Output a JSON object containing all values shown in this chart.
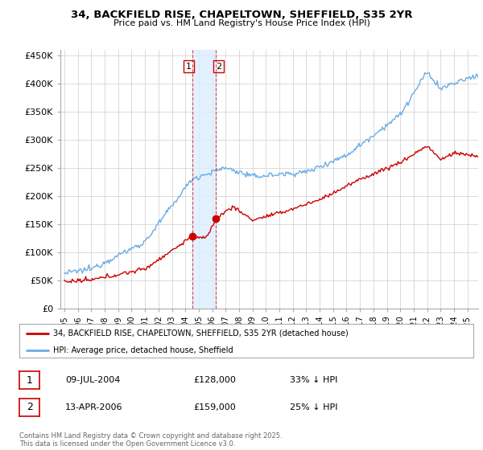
{
  "title": "34, BACKFIELD RISE, CHAPELTOWN, SHEFFIELD, S35 2YR",
  "subtitle": "Price paid vs. HM Land Registry's House Price Index (HPI)",
  "ylabel_ticks": [
    "£0",
    "£50K",
    "£100K",
    "£150K",
    "£200K",
    "£250K",
    "£300K",
    "£350K",
    "£400K",
    "£450K"
  ],
  "ytick_values": [
    0,
    50000,
    100000,
    150000,
    200000,
    250000,
    300000,
    350000,
    400000,
    450000
  ],
  "ylim": [
    0,
    460000
  ],
  "xlim_start": 1994.7,
  "xlim_end": 2025.8,
  "hpi_color": "#6aace6",
  "price_color": "#cc0000",
  "shade_color": "#ddeeff",
  "marker1_date": 2004.52,
  "marker2_date": 2006.28,
  "marker1_price": 128000,
  "marker2_price": 159000,
  "legend_label_price": "34, BACKFIELD RISE, CHAPELTOWN, SHEFFIELD, S35 2YR (detached house)",
  "legend_label_hpi": "HPI: Average price, detached house, Sheffield",
  "annotation1": [
    "1",
    "09-JUL-2004",
    "£128,000",
    "33% ↓ HPI"
  ],
  "annotation2": [
    "2",
    "13-APR-2006",
    "£159,000",
    "25% ↓ HPI"
  ],
  "footer": "Contains HM Land Registry data © Crown copyright and database right 2025.\nThis data is licensed under the Open Government Licence v3.0.",
  "background_color": "#ffffff",
  "grid_color": "#cccccc"
}
